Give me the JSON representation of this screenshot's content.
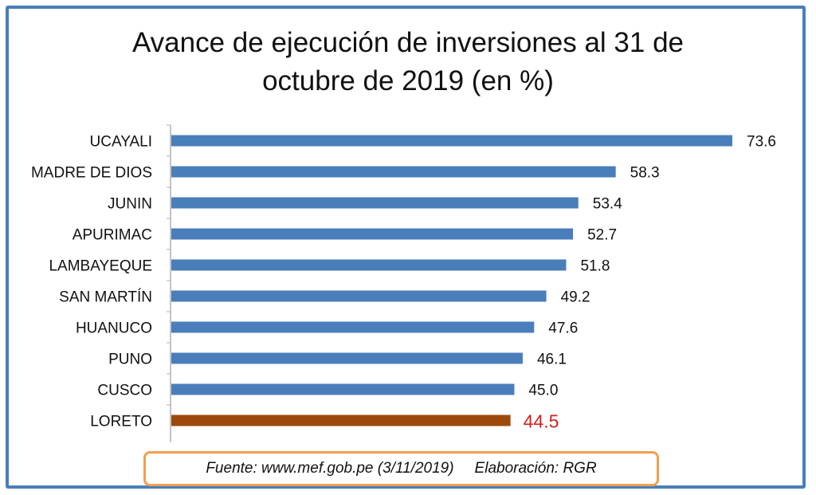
{
  "chart_data": {
    "type": "bar",
    "orientation": "horizontal",
    "title_lines": [
      "Avance de ejecución de inversiones al 31 de",
      "octubre de 2019 (en %)"
    ],
    "categories": [
      "UCAYALI",
      "MADRE DE DIOS",
      "JUNIN",
      "APURIMAC",
      "LAMBAYEQUE",
      "SAN MARTÍN",
      "HUANUCO",
      "PUNO",
      "CUSCO",
      "LORETO"
    ],
    "values": [
      73.6,
      58.3,
      53.4,
      52.7,
      51.8,
      49.2,
      47.6,
      46.1,
      45.0,
      44.5
    ],
    "value_labels": [
      "73.6",
      "58.3",
      "53.4",
      "52.7",
      "51.8",
      "49.2",
      "47.6",
      "46.1",
      "45.0",
      "44.5"
    ],
    "highlight_index": 9,
    "xlim": [
      0,
      80
    ],
    "grid": false,
    "legend": "none"
  },
  "colors": {
    "bar": "#4a7ebb",
    "highlight_bar": "#9c4a0b",
    "highlight_label": "#d42020",
    "label": "#111111",
    "axis": "#b0b0b0",
    "frame": "#4a7ebb",
    "source_border": "#f0a050"
  },
  "footer": {
    "source": "Fuente: www.mef.gob.pe (3/11/2019)",
    "credit": "Elaboración: RGR"
  }
}
